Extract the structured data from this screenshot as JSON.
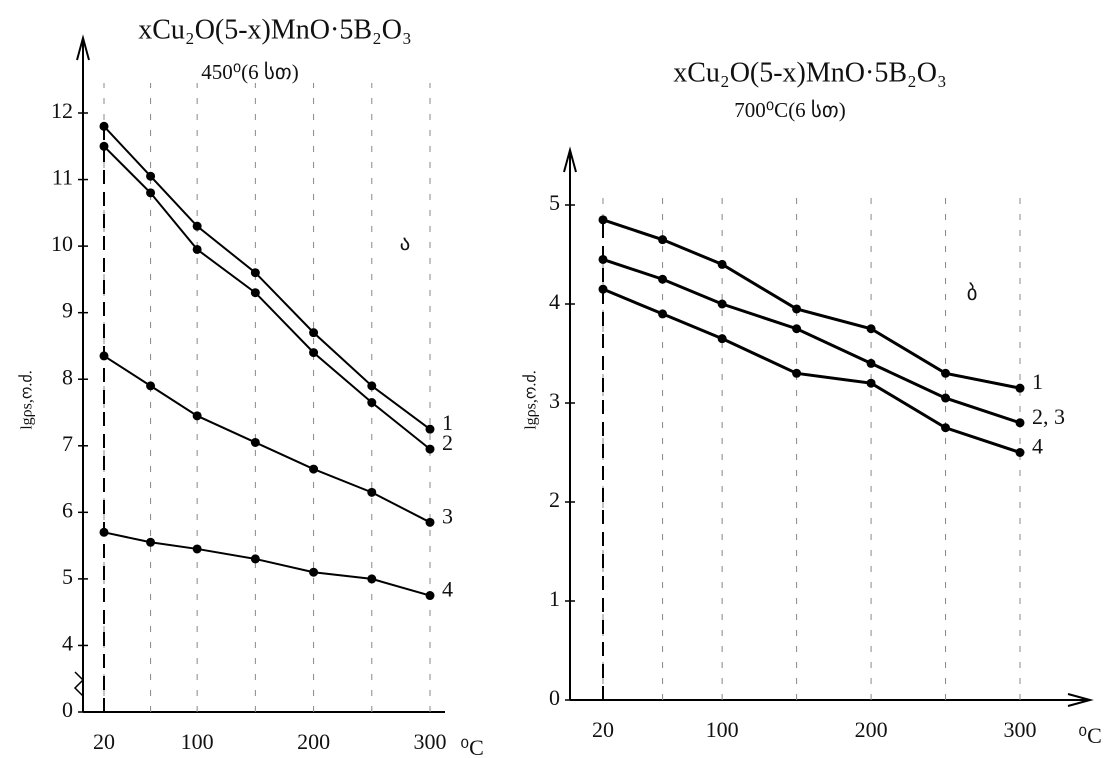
{
  "chart_data": [
    {
      "type": "line",
      "title": "xCu₂O(5-x)MnO·5B₂O₃",
      "subtitle": "450⁰(6 სთ)",
      "y_label": "lgρs,ო.ძ.",
      "x_label": "⁰C",
      "annotation": "ა",
      "x": [
        20,
        60,
        100,
        150,
        200,
        250,
        300
      ],
      "xlim": [
        20,
        300
      ],
      "xticks": [
        20,
        100,
        200,
        300
      ],
      "ylim": [
        0,
        12.3
      ],
      "yticks": [
        0,
        4,
        5,
        6,
        7,
        8,
        9,
        10,
        11,
        12
      ],
      "ybreak": [
        0,
        4
      ],
      "grid": true,
      "series": [
        {
          "name": "1",
          "color": "#000000",
          "values": [
            11.8,
            11.05,
            10.3,
            9.6,
            8.7,
            7.9,
            7.25
          ]
        },
        {
          "name": "2",
          "color": "#000000",
          "values": [
            11.5,
            10.8,
            9.95,
            9.3,
            8.4,
            7.65,
            6.95
          ]
        },
        {
          "name": "3",
          "color": "#000000",
          "values": [
            8.35,
            7.9,
            7.45,
            7.05,
            6.65,
            6.3,
            5.85
          ]
        },
        {
          "name": "4",
          "color": "#000000",
          "values": [
            5.7,
            5.55,
            5.45,
            5.3,
            5.1,
            5.0,
            4.75
          ]
        }
      ]
    },
    {
      "type": "line",
      "title": "xCu₂O(5-x)MnO·5B₂O₃",
      "subtitle": "700⁰C(6 სთ)",
      "y_label": "lgρs,ო.ძ.",
      "x_label": "⁰C",
      "annotation": "ბ",
      "x": [
        20,
        60,
        100,
        150,
        200,
        250,
        300
      ],
      "xlim": [
        20,
        300
      ],
      "xticks": [
        20,
        100,
        200,
        300
      ],
      "ylim": [
        0,
        5
      ],
      "yticks": [
        0,
        1,
        2,
        3,
        4,
        5
      ],
      "grid": true,
      "series": [
        {
          "name": "1",
          "color": "#000000",
          "values": [
            4.85,
            4.65,
            4.4,
            3.95,
            3.75,
            3.3,
            3.15
          ]
        },
        {
          "name": "2, 3",
          "color": "#000000",
          "values": [
            4.45,
            4.25,
            4.0,
            3.75,
            3.4,
            3.05,
            2.8
          ]
        },
        {
          "name": "4",
          "color": "#000000",
          "values": [
            4.15,
            3.9,
            3.65,
            3.3,
            3.2,
            2.75,
            2.5
          ]
        }
      ]
    }
  ]
}
